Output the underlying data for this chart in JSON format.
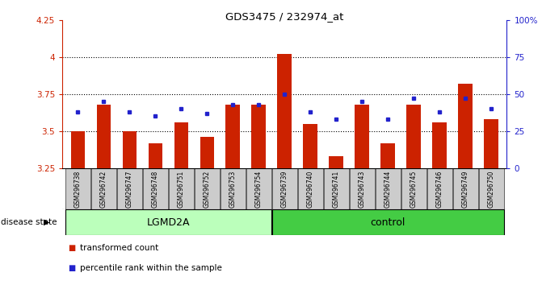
{
  "title": "GDS3475 / 232974_at",
  "samples": [
    "GSM296738",
    "GSM296742",
    "GSM296747",
    "GSM296748",
    "GSM296751",
    "GSM296752",
    "GSM296753",
    "GSM296754",
    "GSM296739",
    "GSM296740",
    "GSM296741",
    "GSM296743",
    "GSM296744",
    "GSM296745",
    "GSM296746",
    "GSM296749",
    "GSM296750"
  ],
  "transformed_count": [
    3.5,
    3.68,
    3.5,
    3.42,
    3.56,
    3.46,
    3.68,
    3.68,
    4.02,
    3.55,
    3.33,
    3.68,
    3.42,
    3.68,
    3.56,
    3.82,
    3.58
  ],
  "percentile_rank": [
    3.63,
    3.7,
    3.63,
    3.6,
    3.65,
    3.62,
    3.68,
    3.68,
    3.75,
    3.63,
    3.58,
    3.7,
    3.58,
    3.72,
    3.63,
    3.72,
    3.65
  ],
  "groups": [
    "LGMD2A",
    "LGMD2A",
    "LGMD2A",
    "LGMD2A",
    "LGMD2A",
    "LGMD2A",
    "LGMD2A",
    "LGMD2A",
    "control",
    "control",
    "control",
    "control",
    "control",
    "control",
    "control",
    "control",
    "control"
  ],
  "ylim_left": [
    3.25,
    4.25
  ],
  "ylim_right": [
    0,
    100
  ],
  "yticks_left": [
    3.25,
    3.5,
    3.75,
    4.0,
    4.25
  ],
  "yticks_right": [
    0,
    25,
    50,
    75,
    100
  ],
  "ytick_labels_left": [
    "3.25",
    "3.5",
    "3.75",
    "4",
    "4.25"
  ],
  "ytick_labels_right": [
    "0",
    "25",
    "50",
    "75",
    "100%"
  ],
  "bar_color": "#cc2200",
  "dot_color": "#2222cc",
  "bar_bottom": 3.25,
  "lgmd2a_color": "#bbffbb",
  "control_color": "#44cc44",
  "group_label_lgmd2a": "LGMD2A",
  "group_label_control": "control",
  "legend_bar_label": "transformed count",
  "legend_dot_label": "percentile rank within the sample",
  "disease_state_label": "disease state"
}
